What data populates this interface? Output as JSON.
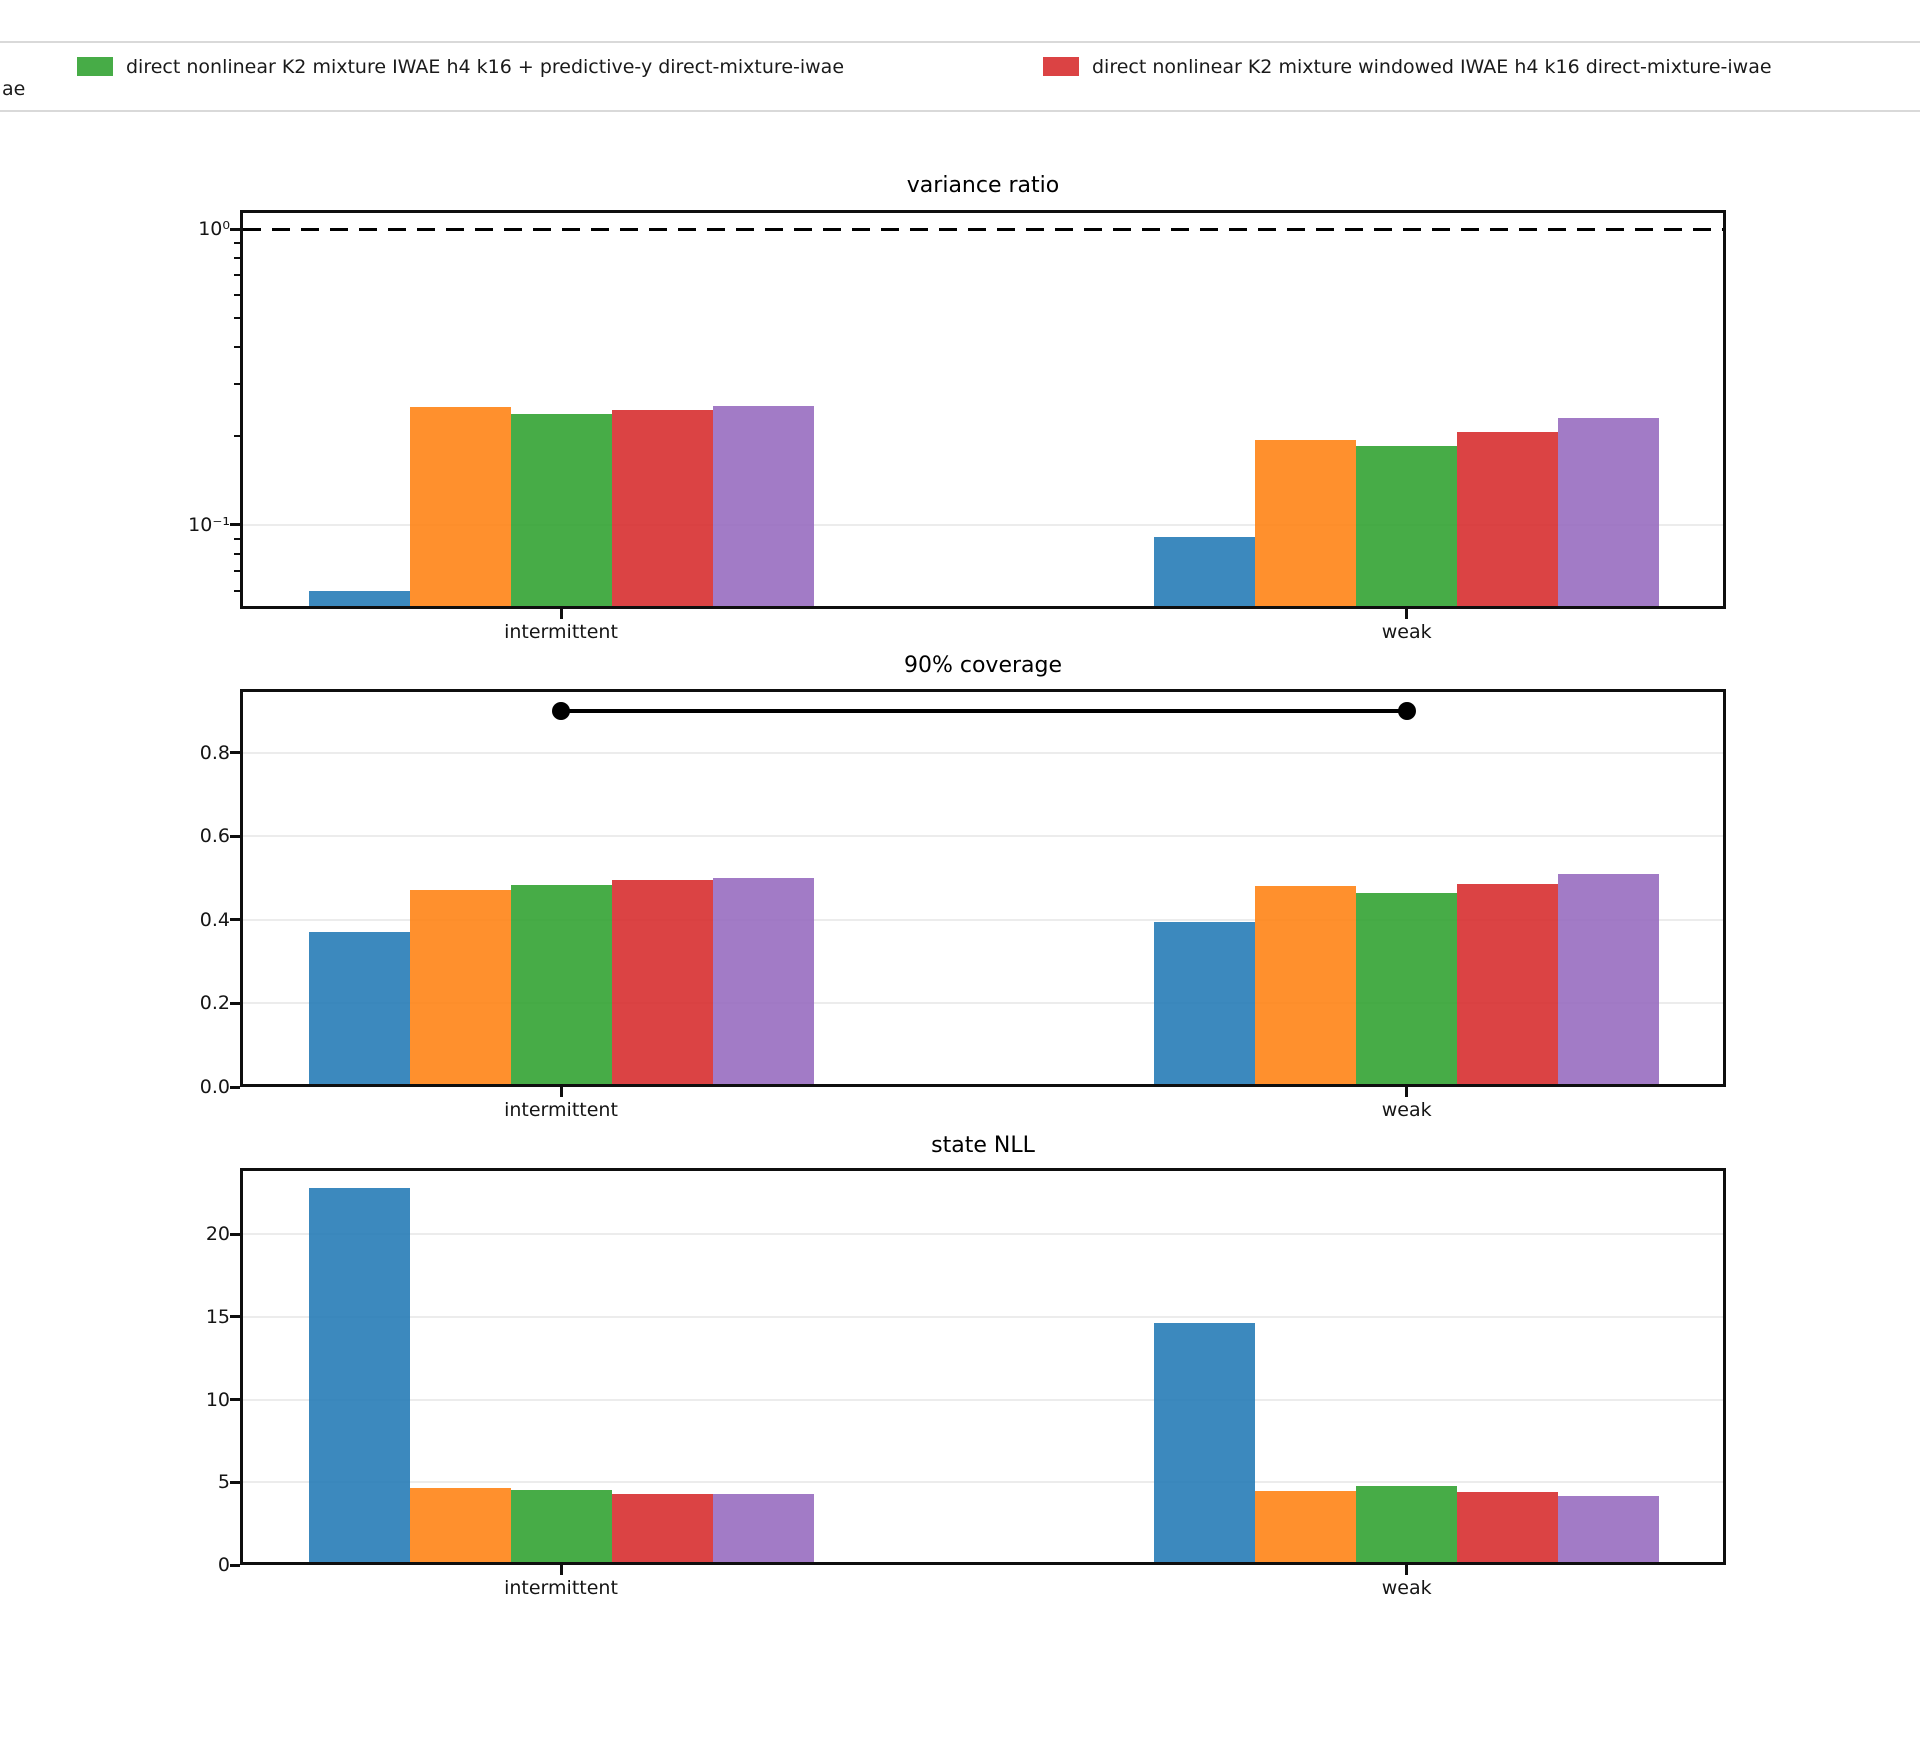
{
  "legend": {
    "clipped_fragment": "ae",
    "entries": [
      {
        "series_index": 2
      },
      {
        "series_index": 3
      }
    ]
  },
  "bar_alpha": 0.87,
  "chart_data": [
    {
      "type": "bar",
      "title": "variance ratio",
      "yscale": "log",
      "ylim": [
        0.052,
        1.16
      ],
      "grid": true,
      "grid_values": [
        0.1
      ],
      "yticks": [
        {
          "label": "10⁰",
          "value": 1
        },
        {
          "label": "10⁻¹",
          "value": 0.1
        }
      ],
      "minor_tick_values": [
        0.9,
        0.8,
        0.7,
        0.6,
        0.5,
        0.4,
        0.3,
        0.2,
        0.09,
        0.08,
        0.07,
        0.06
      ],
      "categories": [
        "intermittent",
        "weak"
      ],
      "series": [
        {
          "name": "",
          "color": "#1f77b4",
          "values": [
            0.06,
            0.091
          ]
        },
        {
          "name": "",
          "color": "#ff7f0e",
          "values": [
            0.251,
            0.193
          ]
        },
        {
          "name": "direct nonlinear K2 mixture IWAE h4 k16 + predictive-y direct-mixture-iwae",
          "color": "#2ca02c",
          "values": [
            0.237,
            0.185
          ]
        },
        {
          "name": "direct nonlinear K2 mixture windowed IWAE h4 k16 direct-mixture-iwae",
          "color": "#d62728",
          "values": [
            0.245,
            0.206
          ]
        },
        {
          "name": "",
          "color": "#9467bd",
          "values": [
            0.252,
            0.23
          ]
        }
      ],
      "reference_line": {
        "value": 1.0,
        "style": "dashed",
        "color": "#000000"
      }
    },
    {
      "type": "bar",
      "title": "90% coverage",
      "yscale": "linear",
      "ylim": [
        0,
        0.953
      ],
      "grid": true,
      "grid_values": [
        0.2,
        0.4,
        0.6,
        0.8
      ],
      "yticks": [
        {
          "label": "0.0",
          "value": 0.0
        },
        {
          "label": "0.2",
          "value": 0.2
        },
        {
          "label": "0.4",
          "value": 0.4
        },
        {
          "label": "0.6",
          "value": 0.6
        },
        {
          "label": "0.8",
          "value": 0.8
        }
      ],
      "categories": [
        "intermittent",
        "weak"
      ],
      "series": [
        {
          "name": "",
          "color": "#1f77b4",
          "values": [
            0.37,
            0.395
          ]
        },
        {
          "name": "",
          "color": "#ff7f0e",
          "values": [
            0.472,
            0.482
          ]
        },
        {
          "name": "direct nonlinear K2 mixture IWAE h4 k16 + predictive-y direct-mixture-iwae",
          "color": "#2ca02c",
          "values": [
            0.483,
            0.465
          ]
        },
        {
          "name": "direct nonlinear K2 mixture windowed IWAE h4 k16 direct-mixture-iwae",
          "color": "#d62728",
          "values": [
            0.495,
            0.486
          ]
        },
        {
          "name": "",
          "color": "#9467bd",
          "values": [
            0.5,
            0.511
          ]
        }
      ],
      "target_line": {
        "value": 0.9,
        "color": "#000000",
        "marker": "circle",
        "from_category": "intermittent",
        "to_category": "weak"
      }
    },
    {
      "type": "bar",
      "title": "state NLL",
      "yscale": "linear",
      "ylim": [
        0,
        24
      ],
      "grid": true,
      "grid_values": [
        5,
        10,
        15,
        20
      ],
      "yticks": [
        {
          "label": "0",
          "value": 0
        },
        {
          "label": "5",
          "value": 5
        },
        {
          "label": "10",
          "value": 10
        },
        {
          "label": "15",
          "value": 15
        },
        {
          "label": "20",
          "value": 20
        }
      ],
      "categories": [
        "intermittent",
        "weak"
      ],
      "series": [
        {
          "name": "",
          "color": "#1f77b4",
          "values": [
            22.8,
            14.6
          ]
        },
        {
          "name": "",
          "color": "#ff7f0e",
          "values": [
            4.65,
            4.5
          ]
        },
        {
          "name": "direct nonlinear K2 mixture IWAE h4 k16 + predictive-y direct-mixture-iwae",
          "color": "#2ca02c",
          "values": [
            4.55,
            4.78
          ]
        },
        {
          "name": "direct nonlinear K2 mixture windowed IWAE h4 k16 direct-mixture-iwae",
          "color": "#d62728",
          "values": [
            4.3,
            4.42
          ]
        },
        {
          "name": "",
          "color": "#9467bd",
          "values": [
            4.28,
            4.15
          ]
        }
      ]
    }
  ]
}
